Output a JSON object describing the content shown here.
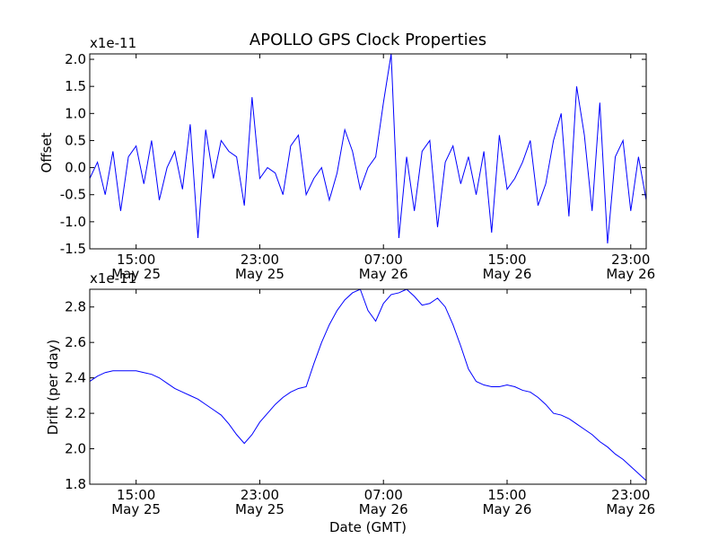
{
  "chart_data": [
    {
      "type": "line",
      "title": "APOLLO GPS Clock Properties",
      "ylabel": "Offset",
      "xlabel": "",
      "scale_label": "x1e-11",
      "ylim": [
        -1.5,
        2.1
      ],
      "xlim_hours": [
        0,
        36
      ],
      "yticks": [
        -1.5,
        -1.0,
        -0.5,
        0.0,
        0.5,
        1.0,
        1.5,
        2.0
      ],
      "ytick_labels": [
        "-1.5",
        "-1.0",
        "-0.5",
        "0.0",
        "0.5",
        "1.0",
        "1.5",
        "2.0"
      ],
      "xticks_hours": [
        3,
        11,
        19,
        27,
        35
      ],
      "xtick_time_labels": [
        "15:00",
        "23:00",
        "07:00",
        "15:00",
        "23:00"
      ],
      "xtick_date_labels": [
        "May 25",
        "May 25",
        "May 26",
        "May 26",
        "May 26"
      ],
      "line_color": "#0000ff",
      "series": [
        {
          "name": "Offset",
          "x_hours": [
            0,
            0.5,
            1,
            1.5,
            2,
            2.5,
            3,
            3.5,
            4,
            4.5,
            5,
            5.5,
            6,
            6.5,
            7,
            7.5,
            8,
            8.5,
            9,
            9.5,
            10,
            10.5,
            11,
            11.5,
            12,
            12.5,
            13,
            13.5,
            14,
            14.5,
            15,
            15.5,
            16,
            16.5,
            17,
            17.5,
            18,
            18.5,
            19,
            19.5,
            20,
            20.5,
            21,
            21.5,
            22,
            22.5,
            23,
            23.5,
            24,
            24.5,
            25,
            25.5,
            26,
            26.5,
            27,
            27.5,
            28,
            28.5,
            29,
            29.5,
            30,
            30.5,
            31,
            31.5,
            32,
            32.5,
            33,
            33.5,
            34,
            34.5,
            35,
            35.5,
            36
          ],
          "values": [
            -0.2,
            0.1,
            -0.5,
            0.3,
            -0.8,
            0.2,
            0.4,
            -0.3,
            0.5,
            -0.6,
            0.0,
            0.3,
            -0.4,
            0.8,
            -1.3,
            0.7,
            -0.2,
            0.5,
            0.3,
            0.2,
            -0.7,
            1.3,
            -0.2,
            0.0,
            -0.1,
            -0.5,
            0.4,
            0.6,
            -0.5,
            -0.2,
            0.0,
            -0.6,
            -0.1,
            0.7,
            0.3,
            -0.4,
            0.0,
            0.2,
            1.2,
            2.1,
            -1.3,
            0.2,
            -0.8,
            0.3,
            0.5,
            -1.1,
            0.1,
            0.4,
            -0.3,
            0.2,
            -0.5,
            0.3,
            -1.2,
            0.6,
            -0.4,
            -0.2,
            0.1,
            0.5,
            -0.7,
            -0.3,
            0.5,
            1.0,
            -0.9,
            1.5,
            0.6,
            -0.8,
            1.2,
            -1.4,
            0.2,
            0.5,
            -0.8,
            0.2,
            -0.6
          ]
        }
      ]
    },
    {
      "type": "line",
      "title": "",
      "ylabel": "Drift (per day)",
      "xlabel": "Date (GMT)",
      "scale_label": "x1e-11",
      "ylim": [
        1.8,
        2.9
      ],
      "xlim_hours": [
        0,
        36
      ],
      "yticks": [
        1.8,
        2.0,
        2.2,
        2.4,
        2.6,
        2.8
      ],
      "ytick_labels": [
        "1.8",
        "2.0",
        "2.2",
        "2.4",
        "2.6",
        "2.8"
      ],
      "xticks_hours": [
        3,
        11,
        19,
        27,
        35
      ],
      "xtick_time_labels": [
        "15:00",
        "23:00",
        "07:00",
        "15:00",
        "23:00"
      ],
      "xtick_date_labels": [
        "May 25",
        "May 25",
        "May 26",
        "May 26",
        "May 26"
      ],
      "line_color": "#0000ff",
      "series": [
        {
          "name": "Drift",
          "x_hours": [
            0,
            0.5,
            1,
            1.5,
            2,
            2.5,
            3,
            3.5,
            4,
            4.5,
            5,
            5.5,
            6,
            6.5,
            7,
            7.5,
            8,
            8.5,
            9,
            9.5,
            10,
            10.5,
            11,
            11.5,
            12,
            12.5,
            13,
            13.5,
            14,
            14.5,
            15,
            15.5,
            16,
            16.5,
            17,
            17.5,
            18,
            18.5,
            19,
            19.5,
            20,
            20.5,
            21,
            21.5,
            22,
            22.5,
            23,
            23.5,
            24,
            24.5,
            25,
            25.5,
            26,
            26.5,
            27,
            27.5,
            28,
            28.5,
            29,
            29.5,
            30,
            30.5,
            31,
            31.5,
            32,
            32.5,
            33,
            33.5,
            34,
            34.5,
            35,
            35.5,
            36
          ],
          "values": [
            2.38,
            2.41,
            2.43,
            2.44,
            2.44,
            2.44,
            2.44,
            2.43,
            2.42,
            2.4,
            2.37,
            2.34,
            2.32,
            2.3,
            2.28,
            2.25,
            2.22,
            2.19,
            2.14,
            2.08,
            2.03,
            2.08,
            2.15,
            2.2,
            2.25,
            2.29,
            2.32,
            2.34,
            2.35,
            2.48,
            2.6,
            2.7,
            2.78,
            2.84,
            2.88,
            2.9,
            2.78,
            2.72,
            2.82,
            2.87,
            2.88,
            2.9,
            2.86,
            2.81,
            2.82,
            2.85,
            2.8,
            2.7,
            2.58,
            2.45,
            2.38,
            2.36,
            2.35,
            2.35,
            2.36,
            2.35,
            2.33,
            2.32,
            2.29,
            2.25,
            2.2,
            2.19,
            2.17,
            2.14,
            2.11,
            2.08,
            2.04,
            2.01,
            1.97,
            1.94,
            1.9,
            1.86,
            1.82
          ]
        }
      ]
    }
  ]
}
